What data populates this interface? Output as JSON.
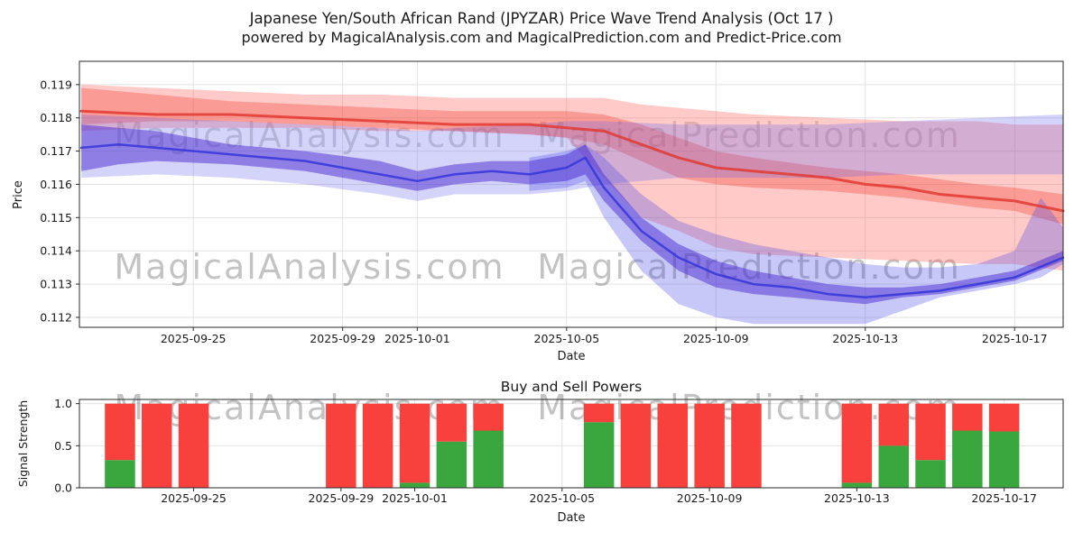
{
  "watermarks": [
    "MagicalAnalysis.com",
    "MagicalPrediction.com"
  ],
  "theme": {
    "grid": "#e2e2e2",
    "axis": "#2a2a2a",
    "watermark_color": "#8a8a8a",
    "background": "#ffffff"
  },
  "chart_data": [
    {
      "type": "area",
      "title": "Japanese Yen/South African Rand (JPYZAR) Price Wave Trend Analysis (Oct 17 )",
      "subtitle": "powered by MagicalAnalysis.com and MagicalPrediction.com and Predict-Price.com",
      "xlabel": "Date",
      "ylabel": "Price",
      "grid": true,
      "legend": false,
      "x_unit": "days since 2025-09-22",
      "xlim": [
        -0.05,
        26.3
      ],
      "ylim": [
        0.1117,
        0.1197
      ],
      "xticks": [
        {
          "x": 3,
          "label": "2025-09-25"
        },
        {
          "x": 7,
          "label": "2025-09-29"
        },
        {
          "x": 9,
          "label": "2025-10-01"
        },
        {
          "x": 13,
          "label": "2025-10-05"
        },
        {
          "x": 17,
          "label": "2025-10-09"
        },
        {
          "x": 21,
          "label": "2025-10-13"
        },
        {
          "x": 25,
          "label": "2025-10-17"
        }
      ],
      "yticks": [
        {
          "v": 0.112,
          "label": "0.112"
        },
        {
          "v": 0.113,
          "label": "0.113"
        },
        {
          "v": 0.114,
          "label": "0.114"
        },
        {
          "v": 0.115,
          "label": "0.115"
        },
        {
          "v": 0.116,
          "label": "0.116"
        },
        {
          "v": 0.117,
          "label": "0.117"
        },
        {
          "v": 0.118,
          "label": "0.118"
        },
        {
          "v": 0.119,
          "label": "0.119"
        }
      ],
      "bands": [
        {
          "name": "red-outer-band",
          "color": "#ff5a52",
          "opacity": 0.32,
          "x": [
            0,
            2,
            4,
            6,
            8,
            10,
            12,
            13,
            14,
            15,
            16,
            17,
            18,
            20,
            22,
            24,
            25,
            26.3
          ],
          "upper": [
            0.119,
            0.1189,
            0.1188,
            0.1187,
            0.1187,
            0.1186,
            0.1186,
            0.1186,
            0.1186,
            0.1184,
            0.1183,
            0.1182,
            0.1181,
            0.118,
            0.1179,
            0.1179,
            0.1178,
            0.1178
          ],
          "lower": [
            0.1176,
            0.1177,
            0.1177,
            0.1177,
            0.1176,
            0.1176,
            0.1175,
            0.1174,
            0.1162,
            0.115,
            0.1146,
            0.1141,
            0.1139,
            0.1138,
            0.1137,
            0.1136,
            0.1136,
            0.1134
          ]
        },
        {
          "name": "red-inner-band",
          "color": "#f04438",
          "opacity": 0.35,
          "x": [
            0,
            2,
            4,
            6,
            8,
            10,
            12,
            13,
            14,
            15,
            16,
            17,
            18,
            20,
            22,
            24,
            25,
            26.3
          ],
          "upper": [
            0.1189,
            0.1187,
            0.1185,
            0.1184,
            0.1183,
            0.1182,
            0.1182,
            0.1182,
            0.1181,
            0.1178,
            0.1174,
            0.117,
            0.1168,
            0.1165,
            0.1163,
            0.116,
            0.1159,
            0.1157
          ],
          "lower": [
            0.1178,
            0.1179,
            0.1179,
            0.1178,
            0.1177,
            0.1176,
            0.1175,
            0.1174,
            0.1172,
            0.1167,
            0.1162,
            0.116,
            0.1159,
            0.1158,
            0.1156,
            0.1153,
            0.1152,
            0.1148
          ]
        },
        {
          "name": "blue-upper-band",
          "color": "#6060f0",
          "opacity": 0.27,
          "x": [
            0,
            2,
            4,
            6,
            8,
            9,
            10,
            12,
            13,
            14,
            16,
            18,
            20,
            22,
            24,
            26.3
          ],
          "upper": [
            0.1181,
            0.118,
            0.1179,
            0.1178,
            0.1177,
            0.1176,
            0.1177,
            0.1178,
            0.1179,
            0.1179,
            0.1178,
            0.1178,
            0.1178,
            0.1179,
            0.118,
            0.1181
          ],
          "lower": [
            0.1162,
            0.1163,
            0.1162,
            0.116,
            0.1157,
            0.1155,
            0.1157,
            0.1157,
            0.1158,
            0.116,
            0.1162,
            0.1162,
            0.1162,
            0.1163,
            0.1163,
            0.1163
          ]
        },
        {
          "name": "blue-fan-band",
          "color": "#4848e8",
          "opacity": 0.3,
          "x": [
            12,
            13,
            13.5,
            14,
            15,
            16,
            17,
            18,
            19,
            20,
            21,
            22,
            23,
            24,
            25,
            25.7,
            26.3
          ],
          "upper": [
            0.1168,
            0.117,
            0.1172,
            0.1168,
            0.1157,
            0.1149,
            0.1145,
            0.1142,
            0.114,
            0.1138,
            0.1136,
            0.1135,
            0.1135,
            0.1136,
            0.114,
            0.1156,
            0.1147
          ],
          "lower": [
            0.1158,
            0.1159,
            0.1161,
            0.115,
            0.1134,
            0.1124,
            0.112,
            0.1118,
            0.1118,
            0.1118,
            0.1118,
            0.1122,
            0.1126,
            0.1128,
            0.113,
            0.1132,
            0.1136
          ]
        },
        {
          "name": "blue-core-band",
          "color": "#4a2ad0",
          "opacity": 0.5,
          "x": [
            0,
            1,
            2,
            4,
            6,
            8,
            9,
            10,
            11,
            12,
            13,
            13.5,
            14,
            15,
            16,
            17,
            18,
            19,
            20,
            21,
            22,
            23,
            24,
            25,
            26.3
          ],
          "upper": [
            0.1178,
            0.1177,
            0.1176,
            0.1172,
            0.117,
            0.1167,
            0.1164,
            0.1166,
            0.1167,
            0.1167,
            0.1169,
            0.1172,
            0.1163,
            0.115,
            0.1142,
            0.1137,
            0.1134,
            0.1132,
            0.113,
            0.1129,
            0.1129,
            0.113,
            0.1132,
            0.1134,
            0.114
          ],
          "lower": [
            0.1164,
            0.1166,
            0.1167,
            0.1166,
            0.1164,
            0.116,
            0.1158,
            0.116,
            0.1161,
            0.116,
            0.1161,
            0.1163,
            0.1155,
            0.1143,
            0.1134,
            0.1129,
            0.1127,
            0.1126,
            0.1125,
            0.1124,
            0.1126,
            0.1127,
            0.1129,
            0.1131,
            0.1137
          ]
        }
      ],
      "series": [
        {
          "name": "red-trend-line",
          "color": "#e03a32",
          "width": 3,
          "opacity": 0.85,
          "x": [
            0,
            2,
            4,
            6,
            8,
            10,
            12,
            13,
            14,
            15,
            16,
            17,
            18,
            19,
            20,
            21,
            22,
            23,
            24,
            25,
            26.3
          ],
          "y": [
            0.1182,
            0.1181,
            0.1181,
            0.118,
            0.1179,
            0.1178,
            0.1178,
            0.1177,
            0.1176,
            0.1172,
            0.1168,
            0.1165,
            0.1164,
            0.1163,
            0.1162,
            0.116,
            0.1159,
            0.1157,
            0.1156,
            0.1155,
            0.1152
          ]
        },
        {
          "name": "blue-trend-line",
          "color": "#3535d8",
          "width": 2.5,
          "opacity": 0.85,
          "x": [
            0,
            1,
            2,
            4,
            6,
            8,
            9,
            10,
            11,
            12,
            13,
            13.5,
            14,
            15,
            16,
            17,
            18,
            19,
            20,
            21,
            22,
            23,
            24,
            25,
            26.3
          ],
          "y": [
            0.1171,
            0.1172,
            0.1171,
            0.1169,
            0.1167,
            0.1163,
            0.1161,
            0.1163,
            0.1164,
            0.1163,
            0.1165,
            0.1168,
            0.1159,
            0.1146,
            0.1138,
            0.1133,
            0.113,
            0.1129,
            0.1127,
            0.1126,
            0.1127,
            0.1128,
            0.113,
            0.1132,
            0.1138
          ]
        }
      ]
    },
    {
      "type": "bar",
      "title": "Buy and Sell Powers",
      "xlabel": "Date",
      "ylabel": "Signal Strength",
      "stacked": true,
      "grid": true,
      "x_unit": "days since 2025-09-22",
      "xlim": [
        -0.1,
        26.6
      ],
      "ylim": [
        0,
        1.05
      ],
      "colors": {
        "buy": "#3aa63e",
        "sell": "#f8413c"
      },
      "xticks": [
        {
          "x": 3,
          "label": "2025-09-25"
        },
        {
          "x": 7,
          "label": "2025-09-29"
        },
        {
          "x": 9,
          "label": "2025-10-01"
        },
        {
          "x": 13,
          "label": "2025-10-05"
        },
        {
          "x": 17,
          "label": "2025-10-09"
        },
        {
          "x": 21,
          "label": "2025-10-13"
        },
        {
          "x": 25,
          "label": "2025-10-17"
        }
      ],
      "yticks": [
        {
          "v": 0,
          "label": "0.0"
        },
        {
          "v": 0.5,
          "label": "0.5"
        },
        {
          "v": 1,
          "label": "1.0"
        }
      ],
      "bars": [
        {
          "date": "2025-09-23",
          "x": 1,
          "buy": 0.33,
          "sell": 0.67
        },
        {
          "date": "2025-09-24",
          "x": 2,
          "buy": 0.0,
          "sell": 1.0
        },
        {
          "date": "2025-09-25",
          "x": 3,
          "buy": 0.0,
          "sell": 1.0
        },
        {
          "date": "2025-09-29",
          "x": 7,
          "buy": 0.0,
          "sell": 1.0
        },
        {
          "date": "2025-09-30",
          "x": 8,
          "buy": 0.0,
          "sell": 1.0
        },
        {
          "date": "2025-10-01",
          "x": 9,
          "buy": 0.06,
          "sell": 0.94
        },
        {
          "date": "2025-10-02",
          "x": 10,
          "buy": 0.55,
          "sell": 0.45
        },
        {
          "date": "2025-10-03",
          "x": 11,
          "buy": 0.68,
          "sell": 0.32
        },
        {
          "date": "2025-10-06",
          "x": 14,
          "buy": 0.78,
          "sell": 0.22
        },
        {
          "date": "2025-10-07",
          "x": 15,
          "buy": 0.0,
          "sell": 1.0
        },
        {
          "date": "2025-10-08",
          "x": 16,
          "buy": 0.0,
          "sell": 1.0
        },
        {
          "date": "2025-10-09",
          "x": 17,
          "buy": 0.0,
          "sell": 1.0
        },
        {
          "date": "2025-10-10",
          "x": 18,
          "buy": 0.0,
          "sell": 1.0
        },
        {
          "date": "2025-10-13",
          "x": 21,
          "buy": 0.06,
          "sell": 0.94
        },
        {
          "date": "2025-10-14",
          "x": 22,
          "buy": 0.5,
          "sell": 0.5
        },
        {
          "date": "2025-10-15",
          "x": 23,
          "buy": 0.33,
          "sell": 0.67
        },
        {
          "date": "2025-10-16",
          "x": 24,
          "buy": 0.68,
          "sell": 0.32
        },
        {
          "date": "2025-10-17",
          "x": 25,
          "buy": 0.67,
          "sell": 0.33
        }
      ]
    }
  ]
}
